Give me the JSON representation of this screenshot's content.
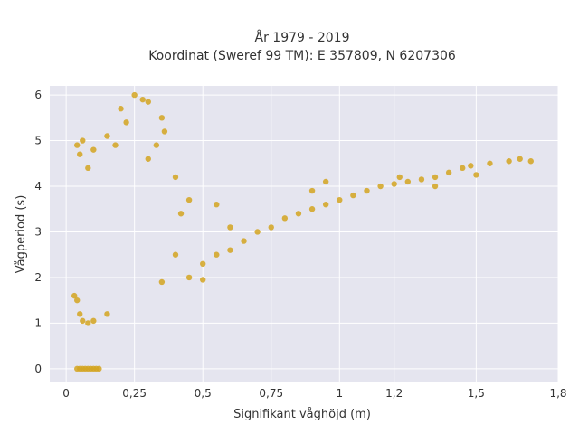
{
  "chart_data": {
    "type": "scatter",
    "title_lines": [
      "År 1979 - 2019",
      "Koordinat (Sweref 99 TM): E 357809, N 6207306"
    ],
    "xlabel": "Signifikant våghöjd (m)",
    "ylabel": "Vågperiod (s)",
    "xlim": [
      -0.06,
      1.8
    ],
    "ylim": [
      -0.3,
      6.2
    ],
    "xticks": [
      {
        "value": 0,
        "label": "0"
      },
      {
        "value": 0.25,
        "label": "0,25"
      },
      {
        "value": 0.5,
        "label": "0,5"
      },
      {
        "value": 0.75,
        "label": "0,75"
      },
      {
        "value": 1.0,
        "label": "1"
      },
      {
        "value": 1.2,
        "label": "1,2"
      },
      {
        "value": 1.5,
        "label": "1,5"
      },
      {
        "value": 1.8,
        "label": "1,8"
      }
    ],
    "yticks": [
      {
        "value": 0,
        "label": "0"
      },
      {
        "value": 1,
        "label": "1"
      },
      {
        "value": 2,
        "label": "2"
      },
      {
        "value": 3,
        "label": "3"
      },
      {
        "value": 4,
        "label": "4"
      },
      {
        "value": 5,
        "label": "5"
      },
      {
        "value": 6,
        "label": "6"
      }
    ],
    "grid": true,
    "background": "#e5e5ef",
    "marker_color": "#d4a520",
    "points": [
      [
        0.04,
        0
      ],
      [
        0.05,
        0
      ],
      [
        0.06,
        0
      ],
      [
        0.07,
        0
      ],
      [
        0.08,
        0
      ],
      [
        0.09,
        0
      ],
      [
        0.1,
        0
      ],
      [
        0.11,
        0
      ],
      [
        0.12,
        0
      ],
      [
        0.25,
        6.0
      ],
      [
        0.3,
        5.85
      ],
      [
        0.28,
        5.9
      ],
      [
        0.35,
        5.5
      ],
      [
        0.2,
        5.7
      ],
      [
        0.22,
        5.4
      ],
      [
        0.04,
        4.9
      ],
      [
        0.06,
        5.0
      ],
      [
        0.05,
        4.7
      ],
      [
        0.08,
        4.4
      ],
      [
        0.1,
        4.8
      ],
      [
        0.03,
        1.6
      ],
      [
        0.04,
        1.5
      ],
      [
        0.05,
        1.2
      ],
      [
        0.06,
        1.05
      ],
      [
        0.08,
        1.0
      ],
      [
        0.1,
        1.05
      ],
      [
        0.15,
        1.2
      ],
      [
        0.45,
        2.0
      ],
      [
        0.5,
        2.3
      ],
      [
        0.55,
        2.5
      ],
      [
        0.6,
        2.6
      ],
      [
        0.65,
        2.8
      ],
      [
        0.7,
        3.0
      ],
      [
        0.75,
        3.1
      ],
      [
        0.8,
        3.3
      ],
      [
        0.85,
        3.4
      ],
      [
        0.9,
        3.5
      ],
      [
        0.95,
        3.6
      ],
      [
        1.0,
        3.7
      ],
      [
        1.05,
        3.8
      ],
      [
        1.1,
        3.9
      ],
      [
        1.15,
        4.0
      ],
      [
        1.2,
        4.05
      ],
      [
        1.25,
        4.1
      ],
      [
        1.3,
        4.15
      ],
      [
        1.35,
        4.2
      ],
      [
        1.4,
        4.3
      ],
      [
        1.45,
        4.4
      ],
      [
        1.5,
        4.25
      ],
      [
        1.55,
        4.5
      ],
      [
        1.62,
        4.55
      ],
      [
        1.66,
        4.6
      ],
      [
        1.7,
        4.55
      ],
      [
        1.48,
        4.45
      ],
      [
        1.35,
        4.0
      ],
      [
        1.22,
        4.2
      ],
      [
        0.95,
        4.1
      ],
      [
        0.9,
        3.9
      ],
      [
        0.4,
        2.5
      ],
      [
        0.35,
        1.9
      ],
      [
        0.3,
        4.6
      ],
      [
        0.33,
        4.9
      ],
      [
        0.36,
        5.2
      ],
      [
        0.4,
        4.2
      ],
      [
        0.18,
        4.9
      ],
      [
        0.15,
        5.1
      ],
      [
        0.45,
        3.7
      ],
      [
        0.55,
        3.6
      ],
      [
        0.6,
        3.1
      ],
      [
        0.5,
        1.95
      ],
      [
        0.42,
        3.4
      ]
    ]
  }
}
